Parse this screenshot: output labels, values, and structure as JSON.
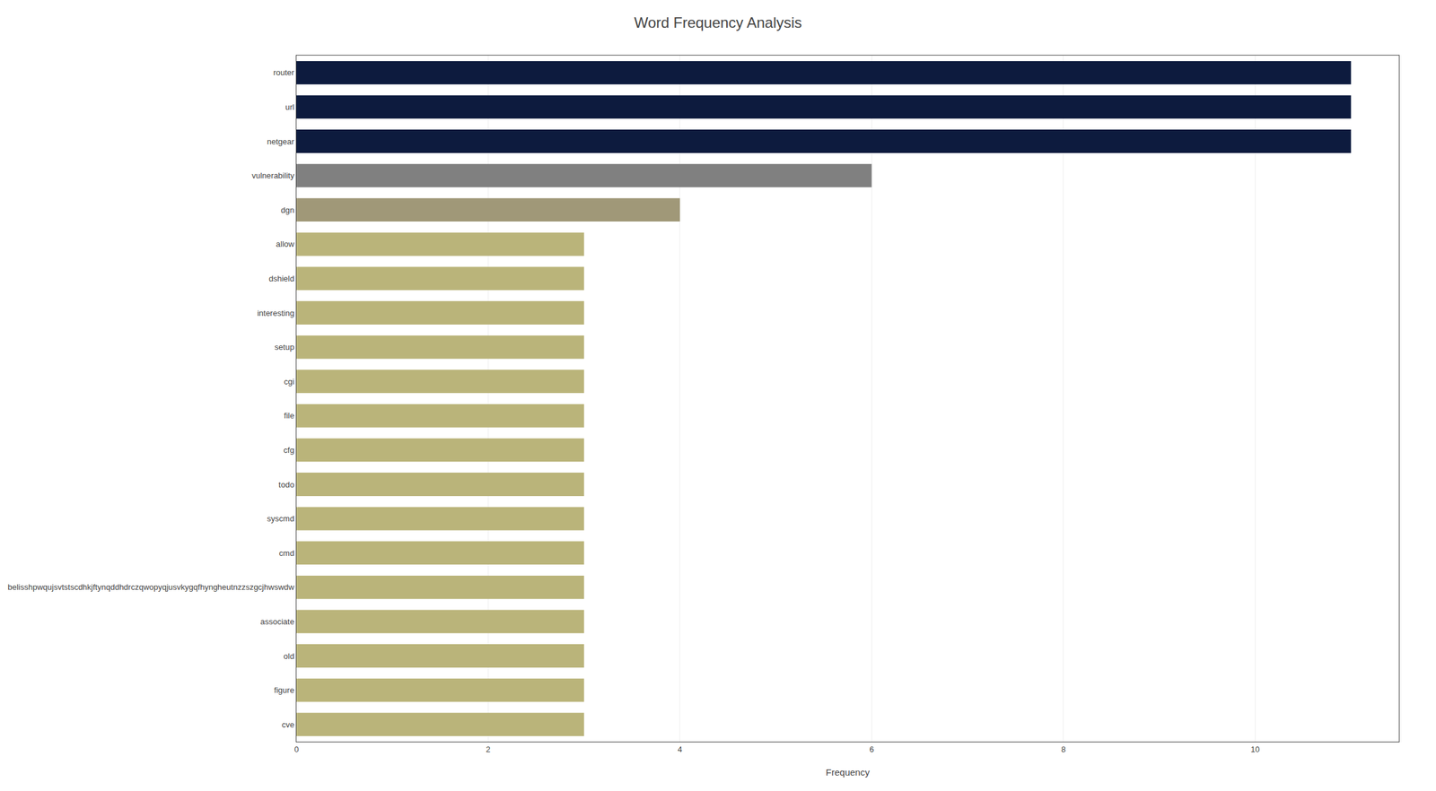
{
  "chart_data": {
    "type": "bar",
    "orientation": "horizontal",
    "title": "Word Frequency Analysis",
    "xlabel": "Frequency",
    "categories": [
      "cve",
      "figure",
      "old",
      "associate",
      "belisshpwqujsvtstscdhkjftynqddhdrczqwopyqjusvkygqfhyngheutnzzszgcjhwswdw",
      "cmd",
      "syscmd",
      "todo",
      "cfg",
      "file",
      "cgi",
      "setup",
      "interesting",
      "dshield",
      "allow",
      "dgn",
      "vulnerability",
      "netgear",
      "url",
      "router"
    ],
    "values": [
      3,
      3,
      3,
      3,
      3,
      3,
      3,
      3,
      3,
      3,
      3,
      3,
      3,
      3,
      3,
      4,
      6,
      11,
      11,
      11
    ],
    "colors": [
      "#bab47a",
      "#bab47a",
      "#bab47a",
      "#bab47a",
      "#bab47a",
      "#bab47a",
      "#bab47a",
      "#bab47a",
      "#bab47a",
      "#bab47a",
      "#bab47a",
      "#bab47a",
      "#bab47a",
      "#bab47a",
      "#bab47a",
      "#a09878",
      "#808080",
      "#0d1b3e",
      "#0d1b3e",
      "#0d1b3e"
    ],
    "xlim": [
      0,
      11.5
    ],
    "xticks": [
      0,
      2,
      4,
      6,
      8,
      10
    ],
    "grid": true
  }
}
